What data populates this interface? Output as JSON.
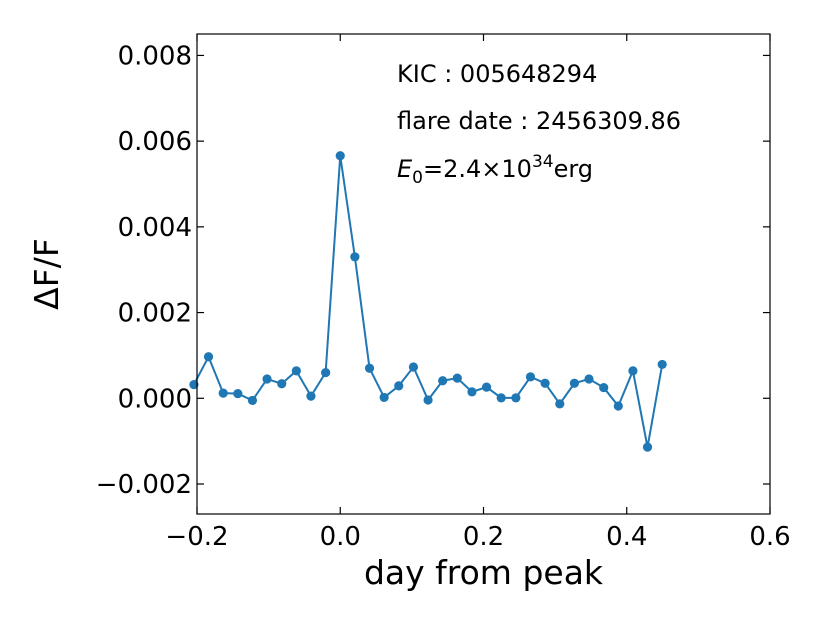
{
  "chart_data": {
    "type": "line",
    "xlabel": "day from peak",
    "ylabel": "ΔF/F",
    "xlim": [
      -0.2,
      0.6
    ],
    "ylim": [
      -0.0027,
      0.0085
    ],
    "xticks": [
      -0.2,
      0.0,
      0.2,
      0.4,
      0.6
    ],
    "xtick_labels": [
      "−0.2",
      "0.0",
      "0.2",
      "0.4",
      "0.6"
    ],
    "yticks": [
      -0.002,
      0.0,
      0.002,
      0.004,
      0.006,
      0.008
    ],
    "ytick_labels": [
      "−0.002",
      "0.000",
      "0.002",
      "0.004",
      "0.006",
      "0.008"
    ],
    "grid": false,
    "series": [
      {
        "color": "#1f77b4",
        "marker": "circle",
        "x": [
          -0.2043,
          -0.1839,
          -0.1634,
          -0.143,
          -0.1226,
          -0.1022,
          -0.0817,
          -0.0613,
          -0.0409,
          -0.0204,
          0.0,
          0.0204,
          0.0409,
          0.0613,
          0.0817,
          0.1022,
          0.1226,
          0.143,
          0.1634,
          0.1839,
          0.2043,
          0.2247,
          0.2452,
          0.2656,
          0.286,
          0.3065,
          0.3269,
          0.3473,
          0.3678,
          0.3882,
          0.4086,
          0.429,
          0.4495
        ],
        "y": [
          0.00032,
          0.00097,
          0.00012,
          0.00011,
          -5e-05,
          0.00045,
          0.00034,
          0.00064,
          5e-05,
          0.0006,
          0.00566,
          0.0033,
          0.0007,
          2e-05,
          0.00029,
          0.00073,
          -4e-05,
          0.00041,
          0.00047,
          0.00015,
          0.00026,
          1e-05,
          1e-05,
          0.0005,
          0.00035,
          -0.00013,
          0.00035,
          0.00045,
          0.00025,
          -0.00018,
          0.00064,
          -0.00114,
          0.00079
        ]
      }
    ]
  },
  "annotations": {
    "kic": "KIC : 005648294",
    "flare_date": "flare date : 2456309.86",
    "energy_symbol": "E",
    "energy_sub": "0",
    "energy_mid": "=2.4×10",
    "energy_exp": "34",
    "energy_unit": "erg"
  }
}
